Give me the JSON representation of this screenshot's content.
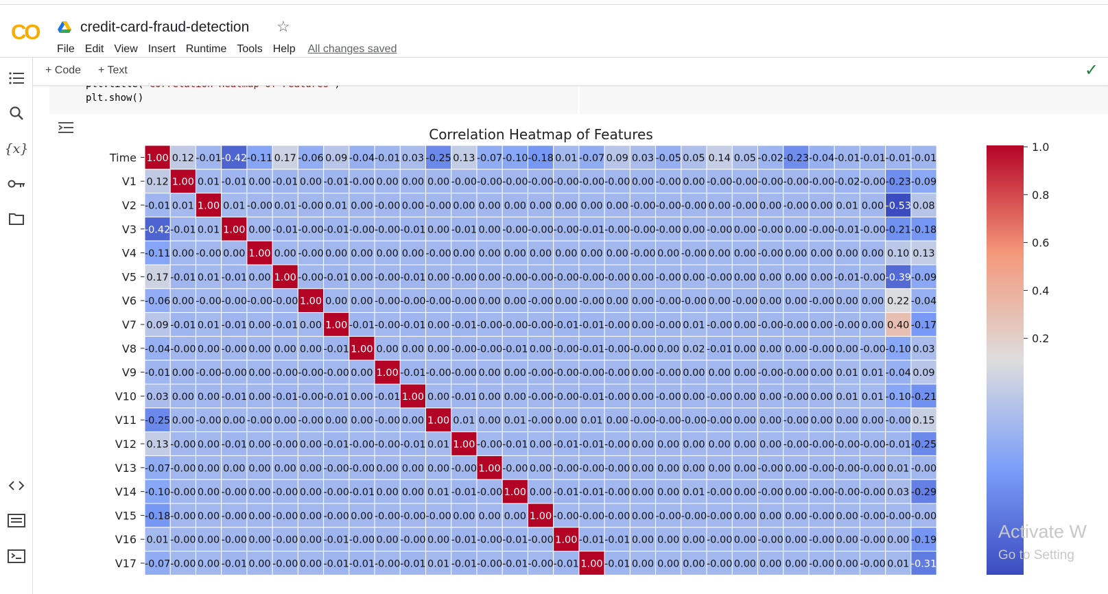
{
  "app": {
    "logo": "CO",
    "title": "credit-card-fraud-detection",
    "menu": [
      "File",
      "Edit",
      "View",
      "Insert",
      "Runtime",
      "Tools",
      "Help"
    ],
    "saved_status": "All changes saved"
  },
  "toolbar": {
    "add_code": "Code",
    "add_text": "Text"
  },
  "sidebar_icons": [
    "table-of-contents-icon",
    "search-icon",
    "variables-icon",
    "secrets-key-icon",
    "folder-icon",
    "code-snippets-icon",
    "command-palette-icon",
    "terminal-icon"
  ],
  "code_cell": {
    "line1_prefix": "plt.title(",
    "line1_string": "'Correlation Heatmap of Features'",
    "line1_suffix": ")",
    "line2": "plt.show()"
  },
  "watermark": {
    "line1": "Activate W",
    "line2": "Go to Setting"
  },
  "chart_data": {
    "type": "heatmap",
    "title": "Correlation Heatmap of Features",
    "colormap": "coolwarm",
    "colorbar_ticks": [
      "1.0",
      "0.8",
      "0.6",
      "0.4",
      "0.2"
    ],
    "rows": [
      "Time",
      "V1",
      "V2",
      "V3",
      "V4",
      "V5",
      "V6",
      "V7",
      "V8",
      "V9",
      "V10",
      "V11",
      "V12",
      "V13",
      "V14",
      "V15",
      "V16",
      "V17"
    ],
    "cell_text": [
      [
        "1.00",
        "0.12",
        "-0.01",
        "-0.42",
        "-0.11",
        "0.17",
        "-0.06",
        "0.09",
        "-0.04",
        "-0.01",
        "0.03",
        "-0.25",
        "0.13",
        "-0.07",
        "-0.10",
        "-0.18",
        "0.01",
        "-0.07",
        "0.09",
        "0.03",
        "-0.05",
        "0.05",
        "0.14",
        "0.05",
        "-0.02",
        "-0.23",
        "-0.04",
        "-0.01",
        "-0.01",
        "-0.01",
        "-0.01"
      ],
      [
        "0.12",
        "1.00",
        "0.01",
        "-0.01",
        "0.00",
        "-0.01",
        "0.00",
        "-0.01",
        "-0.00",
        "0.00",
        "0.00",
        "0.00",
        "-0.00",
        "-0.00",
        "-0.00",
        "-0.00",
        "-0.00",
        "-0.00",
        "-0.00",
        "0.00",
        "-0.00",
        "0.00",
        "-0.00",
        "-0.00",
        "-0.00",
        "-0.00",
        "-0.00",
        "-0.02",
        "-0.00",
        "-0.23",
        "-0.09"
      ],
      [
        "-0.01",
        "0.01",
        "1.00",
        "0.01",
        "-0.00",
        "0.01",
        "-0.00",
        "0.01",
        "0.00",
        "-0.00",
        "0.00",
        "-0.00",
        "0.00",
        "0.00",
        "0.00",
        "0.00",
        "0.00",
        "0.00",
        "0.00",
        "-0.00",
        "-0.00",
        "-0.00",
        "0.00",
        "-0.00",
        "0.00",
        "-0.00",
        "0.00",
        "0.01",
        "0.00",
        "-0.53",
        "0.08"
      ],
      [
        "-0.42",
        "-0.01",
        "0.01",
        "1.00",
        "0.00",
        "-0.01",
        "-0.00",
        "-0.01",
        "-0.00",
        "-0.00",
        "-0.01",
        "0.00",
        "-0.01",
        "0.00",
        "-0.00",
        "-0.00",
        "-0.00",
        "-0.01",
        "-0.00",
        "-0.00",
        "-0.00",
        "0.00",
        "-0.00",
        "0.00",
        "-0.00",
        "0.00",
        "-0.00",
        "-0.01",
        "-0.00",
        "-0.21",
        "-0.18"
      ],
      [
        "-0.11",
        "0.00",
        "-0.00",
        "0.00",
        "1.00",
        "0.00",
        "-0.00",
        "0.00",
        "0.00",
        "0.00",
        "0.00",
        "-0.00",
        "0.00",
        "0.00",
        "0.00",
        "0.00",
        "0.00",
        "0.00",
        "0.00",
        "-0.00",
        "0.00",
        "-0.00",
        "0.00",
        "0.00",
        "-0.00",
        "0.00",
        "0.00",
        "0.00",
        "0.00",
        "0.10",
        "0.13"
      ],
      [
        "0.17",
        "-0.01",
        "0.01",
        "-0.01",
        "0.00",
        "1.00",
        "-0.00",
        "-0.01",
        "0.00",
        "-0.00",
        "-0.01",
        "0.00",
        "-0.00",
        "0.00",
        "-0.00",
        "-0.00",
        "-0.00",
        "-0.00",
        "-0.00",
        "0.00",
        "-0.00",
        "0.00",
        "-0.00",
        "0.00",
        "0.00",
        "0.00",
        "0.00",
        "-0.01",
        "-0.00",
        "-0.39",
        "-0.09"
      ],
      [
        "-0.06",
        "0.00",
        "-0.00",
        "-0.00",
        "-0.00",
        "-0.00",
        "1.00",
        "0.00",
        "0.00",
        "-0.00",
        "-0.00",
        "-0.00",
        "-0.00",
        "0.00",
        "0.00",
        "-0.00",
        "0.00",
        "-0.00",
        "0.00",
        "0.00",
        "-0.00",
        "-0.00",
        "0.00",
        "-0.00",
        "0.00",
        "0.00",
        "-0.00",
        "0.00",
        "0.00",
        "0.22",
        "-0.04"
      ],
      [
        "0.09",
        "-0.01",
        "0.01",
        "-0.01",
        "0.00",
        "-0.01",
        "0.00",
        "1.00",
        "-0.01",
        "-0.00",
        "-0.01",
        "0.00",
        "-0.01",
        "-0.00",
        "-0.00",
        "-0.00",
        "-0.01",
        "-0.01",
        "-0.00",
        "0.00",
        "-0.00",
        "0.01",
        "-0.00",
        "0.00",
        "-0.00",
        "-0.00",
        "0.00",
        "-0.00",
        "0.00",
        "0.40",
        "-0.17"
      ],
      [
        "-0.04",
        "-0.00",
        "0.00",
        "-0.00",
        "0.00",
        "0.00",
        "0.00",
        "-0.01",
        "1.00",
        "0.00",
        "0.00",
        "0.00",
        "-0.00",
        "-0.00",
        "-0.01",
        "0.00",
        "-0.00",
        "-0.01",
        "-0.00",
        "-0.00",
        "0.00",
        "0.02",
        "-0.01",
        "0.00",
        "0.00",
        "0.00",
        "-0.00",
        "0.00",
        "-0.00",
        "-0.10",
        "0.03"
      ],
      [
        "-0.01",
        "0.00",
        "-0.00",
        "-0.00",
        "0.00",
        "-0.00",
        "-0.00",
        "-0.00",
        "0.00",
        "1.00",
        "-0.01",
        "-0.00",
        "-0.00",
        "0.00",
        "0.00",
        "-0.00",
        "-0.00",
        "-0.00",
        "-0.00",
        "0.00",
        "-0.00",
        "0.00",
        "0.00",
        "0.00",
        "-0.00",
        "-0.00",
        "0.00",
        "0.01",
        "0.01",
        "-0.04",
        "0.09"
      ],
      [
        "0.03",
        "0.00",
        "0.00",
        "-0.01",
        "0.00",
        "-0.01",
        "-0.00",
        "-0.01",
        "0.00",
        "-0.01",
        "1.00",
        "0.00",
        "-0.01",
        "0.00",
        "0.00",
        "-0.00",
        "-0.00",
        "-0.01",
        "-0.00",
        "0.00",
        "-0.00",
        "0.00",
        "-0.00",
        "0.00",
        "0.00",
        "-0.00",
        "0.00",
        "0.01",
        "0.01",
        "-0.10",
        "-0.21"
      ],
      [
        "-0.25",
        "0.00",
        "-0.00",
        "0.00",
        "-0.00",
        "0.00",
        "-0.00",
        "0.00",
        "0.00",
        "-0.00",
        "0.00",
        "1.00",
        "0.01",
        "0.00",
        "0.01",
        "-0.00",
        "0.00",
        "0.01",
        "0.00",
        "-0.00",
        "-0.00",
        "-0.00",
        "-0.00",
        "0.00",
        "0.00",
        "-0.00",
        "0.00",
        "0.00",
        "0.00",
        "-0.00",
        "0.15"
      ],
      [
        "0.13",
        "-0.00",
        "0.00",
        "-0.01",
        "0.00",
        "-0.00",
        "0.00",
        "-0.01",
        "-0.00",
        "-0.00",
        "-0.01",
        "0.01",
        "1.00",
        "-0.00",
        "-0.01",
        "0.00",
        "-0.01",
        "-0.01",
        "-0.00",
        "0.00",
        "0.00",
        "0.00",
        "0.00",
        "0.00",
        "0.00",
        "-0.00",
        "-0.00",
        "-0.00",
        "-0.00",
        "-0.01",
        "-0.25"
      ],
      [
        "-0.07",
        "-0.00",
        "0.00",
        "0.00",
        "0.00",
        "0.00",
        "0.00",
        "-0.00",
        "-0.00",
        "0.00",
        "0.00",
        "0.00",
        "-0.00",
        "1.00",
        "-0.00",
        "0.00",
        "-0.00",
        "-0.00",
        "-0.00",
        "0.00",
        "0.00",
        "0.00",
        "0.00",
        "0.00",
        "-0.00",
        "0.00",
        "-0.00",
        "-0.00",
        "-0.00",
        "0.01",
        "-0.00"
      ],
      [
        "-0.10",
        "-0.00",
        "0.00",
        "-0.00",
        "0.00",
        "-0.00",
        "0.00",
        "-0.00",
        "-0.01",
        "0.00",
        "0.00",
        "0.01",
        "-0.01",
        "-0.00",
        "1.00",
        "0.00",
        "-0.01",
        "-0.01",
        "-0.00",
        "0.00",
        "0.00",
        "0.01",
        "-0.00",
        "0.00",
        "-0.00",
        "0.00",
        "-0.00",
        "-0.00",
        "-0.00",
        "0.03",
        "-0.29"
      ],
      [
        "-0.18",
        "-0.00",
        "0.00",
        "-0.00",
        "0.00",
        "-0.00",
        "0.00",
        "-0.00",
        "0.00",
        "-0.00",
        "-0.00",
        "-0.00",
        "0.00",
        "0.00",
        "0.00",
        "1.00",
        "-0.00",
        "-0.00",
        "-0.00",
        "0.00",
        "-0.00",
        "-0.00",
        "-0.00",
        "0.00",
        "0.00",
        "0.00",
        "-0.00",
        "0.00",
        "-0.00",
        "-0.00",
        "-0.00"
      ],
      [
        "0.01",
        "-0.00",
        "0.00",
        "-0.00",
        "0.00",
        "-0.00",
        "0.00",
        "-0.01",
        "-0.00",
        "0.00",
        "-0.00",
        "0.00",
        "-0.01",
        "-0.00",
        "-0.01",
        "-0.00",
        "1.00",
        "-0.01",
        "-0.01",
        "0.00",
        "0.00",
        "0.00",
        "-0.00",
        "0.00",
        "-0.00",
        "0.00",
        "-0.00",
        "0.00",
        "-0.00",
        "0.00",
        "-0.19"
      ],
      [
        "-0.07",
        "-0.00",
        "0.00",
        "-0.01",
        "0.00",
        "-0.00",
        "0.00",
        "-0.01",
        "-0.01",
        "-0.00",
        "-0.01",
        "0.01",
        "-0.01",
        "-0.00",
        "-0.01",
        "-0.00",
        "-0.01",
        "1.00",
        "-0.01",
        "0.00",
        "0.00",
        "0.00",
        "-0.00",
        "0.00",
        "0.00",
        "0.00",
        "-0.00",
        "0.00",
        "-0.00",
        "0.01",
        "-0.31"
      ]
    ]
  }
}
